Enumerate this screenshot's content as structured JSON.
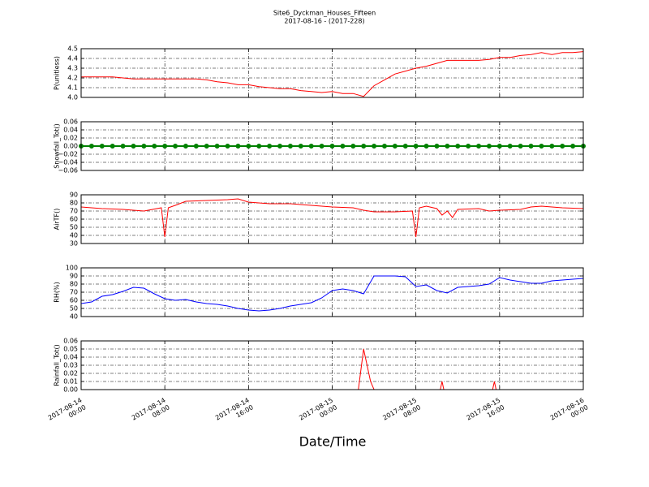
{
  "figure": {
    "title": "Site6_Dyckman_Houses_Fifteen",
    "subtitle": "2017-08-16 - (2017-228)",
    "xlabel": "Date/Time",
    "xlim": [
      "2017-08-14 00:00",
      "2017-08-16 00:00"
    ],
    "xticks": [
      "2017-08-14 00:00",
      "2017-08-14 08:00",
      "2017-08-14 16:00",
      "2017-08-15 00:00",
      "2017-08-15 08:00",
      "2017-08-15 16:00",
      "2017-08-16 00:00"
    ]
  },
  "chart_data": [
    {
      "type": "line",
      "ylabel": "P(unitless)",
      "ylim": [
        4.0,
        4.5
      ],
      "grid": true,
      "yticks": [
        {
          "value": 4.0,
          "label": "4.0"
        },
        4.1,
        4.2,
        4.3,
        4.4,
        4.5
      ],
      "x": [
        "2017-08-14 00:00",
        "2017-08-14 01:00",
        "2017-08-14 02:00",
        "2017-08-14 03:00",
        "2017-08-14 04:00",
        "2017-08-14 05:00",
        "2017-08-14 06:00",
        "2017-08-14 07:00",
        "2017-08-14 08:00",
        "2017-08-14 09:00",
        "2017-08-14 10:00",
        "2017-08-14 11:00",
        "2017-08-14 12:00",
        "2017-08-14 13:00",
        "2017-08-14 14:00",
        "2017-08-14 15:00",
        "2017-08-14 16:00",
        "2017-08-14 17:00",
        "2017-08-14 18:00",
        "2017-08-14 19:00",
        "2017-08-14 20:00",
        "2017-08-14 21:00",
        "2017-08-14 22:00",
        "2017-08-14 23:00",
        "2017-08-15 00:00",
        "2017-08-15 01:00",
        "2017-08-15 02:00",
        "2017-08-15 03:00",
        "2017-08-15 04:00",
        "2017-08-15 05:00",
        "2017-08-15 06:00",
        "2017-08-15 07:00",
        "2017-08-15 08:00",
        "2017-08-15 09:00",
        "2017-08-15 10:00",
        "2017-08-15 11:00",
        "2017-08-15 12:00",
        "2017-08-15 13:00",
        "2017-08-15 14:00",
        "2017-08-15 15:00",
        "2017-08-15 16:00",
        "2017-08-15 17:00",
        "2017-08-15 18:00",
        "2017-08-15 19:00",
        "2017-08-15 20:00",
        "2017-08-15 21:00",
        "2017-08-15 22:00",
        "2017-08-15 23:00",
        "2017-08-16 00:00"
      ],
      "series": [
        {
          "color": "#ff0000",
          "values": [
            4.21,
            4.21,
            4.21,
            4.21,
            4.2,
            4.19,
            4.19,
            4.19,
            4.19,
            4.19,
            4.19,
            4.19,
            4.18,
            4.16,
            4.15,
            4.13,
            4.13,
            4.11,
            4.1,
            4.09,
            4.09,
            4.07,
            4.06,
            4.05,
            4.06,
            4.04,
            4.04,
            4.01,
            4.12,
            4.18,
            4.24,
            4.27,
            4.3,
            4.32,
            4.35,
            4.38,
            4.38,
            4.38,
            4.38,
            4.39,
            4.41,
            4.41,
            4.43,
            4.44,
            4.46,
            4.44,
            4.46,
            4.46,
            4.47
          ]
        }
      ]
    },
    {
      "type": "line",
      "ylabel": "Snowfall_Tot()",
      "ylim": [
        -0.06,
        0.06
      ],
      "grid": true,
      "marker": true,
      "yticks": [
        {
          "value": -0.06,
          "label": "−0.06"
        },
        {
          "value": -0.04,
          "label": "−0.04"
        },
        {
          "value": -0.02,
          "label": "−0.02"
        },
        {
          "value": 0,
          "label": "0.00"
        },
        0.02,
        0.04,
        0.06
      ],
      "x": [
        "2017-08-14 00:00",
        "2017-08-14 01:00",
        "2017-08-14 02:00",
        "2017-08-14 03:00",
        "2017-08-14 04:00",
        "2017-08-14 05:00",
        "2017-08-14 06:00",
        "2017-08-14 07:00",
        "2017-08-14 08:00",
        "2017-08-14 09:00",
        "2017-08-14 10:00",
        "2017-08-14 11:00",
        "2017-08-14 12:00",
        "2017-08-14 13:00",
        "2017-08-14 14:00",
        "2017-08-14 15:00",
        "2017-08-14 16:00",
        "2017-08-14 17:00",
        "2017-08-14 18:00",
        "2017-08-14 19:00",
        "2017-08-14 20:00",
        "2017-08-14 21:00",
        "2017-08-14 22:00",
        "2017-08-14 23:00",
        "2017-08-15 00:00",
        "2017-08-15 01:00",
        "2017-08-15 02:00",
        "2017-08-15 03:00",
        "2017-08-15 04:00",
        "2017-08-15 05:00",
        "2017-08-15 06:00",
        "2017-08-15 07:00",
        "2017-08-15 08:00",
        "2017-08-15 09:00",
        "2017-08-15 10:00",
        "2017-08-15 11:00",
        "2017-08-15 12:00",
        "2017-08-15 13:00",
        "2017-08-15 14:00",
        "2017-08-15 15:00",
        "2017-08-15 16:00",
        "2017-08-15 17:00",
        "2017-08-15 18:00",
        "2017-08-15 19:00",
        "2017-08-15 20:00",
        "2017-08-15 21:00",
        "2017-08-15 22:00",
        "2017-08-15 23:00",
        "2017-08-16 00:00"
      ],
      "series": [
        {
          "color": "#008000",
          "values": [
            0,
            0,
            0,
            0,
            0,
            0,
            0,
            0,
            0,
            0,
            0,
            0,
            0,
            0,
            0,
            0,
            0,
            0,
            0,
            0,
            0,
            0,
            0,
            0,
            0,
            0,
            0,
            0,
            0,
            0,
            0,
            0,
            0,
            0,
            0,
            0,
            0,
            0,
            0,
            0,
            0,
            0,
            0,
            0,
            0,
            0,
            0,
            0,
            0
          ]
        }
      ]
    },
    {
      "type": "line",
      "ylabel": "AirTF()",
      "ylim": [
        30,
        90
      ],
      "grid": true,
      "yticks": [
        30,
        40,
        50,
        60,
        70,
        80,
        90
      ],
      "x": [
        "2017-08-14 00:00",
        "2017-08-14 02:00",
        "2017-08-14 04:00",
        "2017-08-14 06:00",
        "2017-08-14 07:40",
        "2017-08-14 08:00",
        "2017-08-14 08:20",
        "2017-08-14 09:00",
        "2017-08-14 10:00",
        "2017-08-14 12:00",
        "2017-08-14 14:00",
        "2017-08-14 15:00",
        "2017-08-14 16:00",
        "2017-08-14 18:00",
        "2017-08-14 20:00",
        "2017-08-14 22:00",
        "2017-08-15 00:00",
        "2017-08-15 02:00",
        "2017-08-15 03:00",
        "2017-08-15 04:00",
        "2017-08-15 06:00",
        "2017-08-15 07:40",
        "2017-08-15 08:00",
        "2017-08-15 08:20",
        "2017-08-15 09:00",
        "2017-08-15 10:00",
        "2017-08-15 10:30",
        "2017-08-15 11:00",
        "2017-08-15 11:30",
        "2017-08-15 12:00",
        "2017-08-15 14:00",
        "2017-08-15 15:00",
        "2017-08-15 16:00",
        "2017-08-15 18:00",
        "2017-08-15 19:00",
        "2017-08-15 20:00",
        "2017-08-15 22:00",
        "2017-08-16 00:00"
      ],
      "series": [
        {
          "color": "#ff0000",
          "values": [
            75,
            73,
            72,
            70,
            74,
            38,
            74,
            77,
            82,
            83,
            84,
            85,
            81,
            79,
            79,
            77,
            75,
            74,
            71,
            69,
            69,
            70,
            38,
            74,
            76,
            73,
            65,
            70,
            62,
            72,
            73,
            70,
            71,
            72,
            75,
            76,
            74,
            73
          ]
        }
      ]
    },
    {
      "type": "line",
      "ylabel": "RH(%)",
      "ylim": [
        40,
        100
      ],
      "grid": true,
      "yticks": [
        40,
        50,
        60,
        70,
        80,
        90,
        100
      ],
      "x": [
        "2017-08-14 00:00",
        "2017-08-14 01:00",
        "2017-08-14 02:00",
        "2017-08-14 03:00",
        "2017-08-14 04:00",
        "2017-08-14 05:00",
        "2017-08-14 06:00",
        "2017-08-14 07:00",
        "2017-08-14 08:00",
        "2017-08-14 09:00",
        "2017-08-14 10:00",
        "2017-08-14 11:00",
        "2017-08-14 12:00",
        "2017-08-14 13:00",
        "2017-08-14 14:00",
        "2017-08-14 15:00",
        "2017-08-14 16:00",
        "2017-08-14 17:00",
        "2017-08-14 18:00",
        "2017-08-14 19:00",
        "2017-08-14 20:00",
        "2017-08-14 21:00",
        "2017-08-14 22:00",
        "2017-08-14 23:00",
        "2017-08-15 00:00",
        "2017-08-15 01:00",
        "2017-08-15 02:00",
        "2017-08-15 03:00",
        "2017-08-15 04:00",
        "2017-08-15 05:00",
        "2017-08-15 06:00",
        "2017-08-15 07:00",
        "2017-08-15 08:00",
        "2017-08-15 09:00",
        "2017-08-15 10:00",
        "2017-08-15 11:00",
        "2017-08-15 12:00",
        "2017-08-15 13:00",
        "2017-08-15 14:00",
        "2017-08-15 15:00",
        "2017-08-15 16:00",
        "2017-08-15 17:00",
        "2017-08-15 18:00",
        "2017-08-15 19:00",
        "2017-08-15 20:00",
        "2017-08-15 21:00",
        "2017-08-15 22:00",
        "2017-08-15 23:00",
        "2017-08-16 00:00"
      ],
      "series": [
        {
          "color": "#0000ff",
          "values": [
            56,
            58,
            65,
            67,
            71,
            76,
            75,
            68,
            62,
            60,
            61,
            58,
            56,
            55,
            53,
            50,
            48,
            47,
            48,
            50,
            53,
            55,
            57,
            63,
            72,
            74,
            72,
            68,
            90,
            90,
            90,
            89,
            77,
            79,
            72,
            69,
            76,
            77,
            78,
            80,
            88,
            85,
            83,
            81,
            81,
            84,
            85,
            86,
            87
          ]
        }
      ]
    },
    {
      "type": "line",
      "ylabel": "Rainfall_Tot()",
      "ylim": [
        0,
        0.06
      ],
      "grid": true,
      "yticks": [
        {
          "value": 0,
          "label": "0.00"
        },
        0.01,
        0.02,
        0.03,
        0.04,
        0.05,
        0.06
      ],
      "x": [
        "2017-08-14 00:00",
        "2017-08-15 02:30",
        "2017-08-15 03:00",
        "2017-08-15 03:40",
        "2017-08-15 04:00",
        "2017-08-15 10:20",
        "2017-08-15 10:30",
        "2017-08-15 10:40",
        "2017-08-15 15:20",
        "2017-08-15 15:30",
        "2017-08-15 15:40",
        "2017-08-16 00:00"
      ],
      "series": [
        {
          "color": "#ff0000",
          "values": [
            0,
            0,
            0.05,
            0.01,
            0,
            0,
            0.01,
            0,
            0,
            0.01,
            0,
            0
          ]
        }
      ]
    }
  ]
}
